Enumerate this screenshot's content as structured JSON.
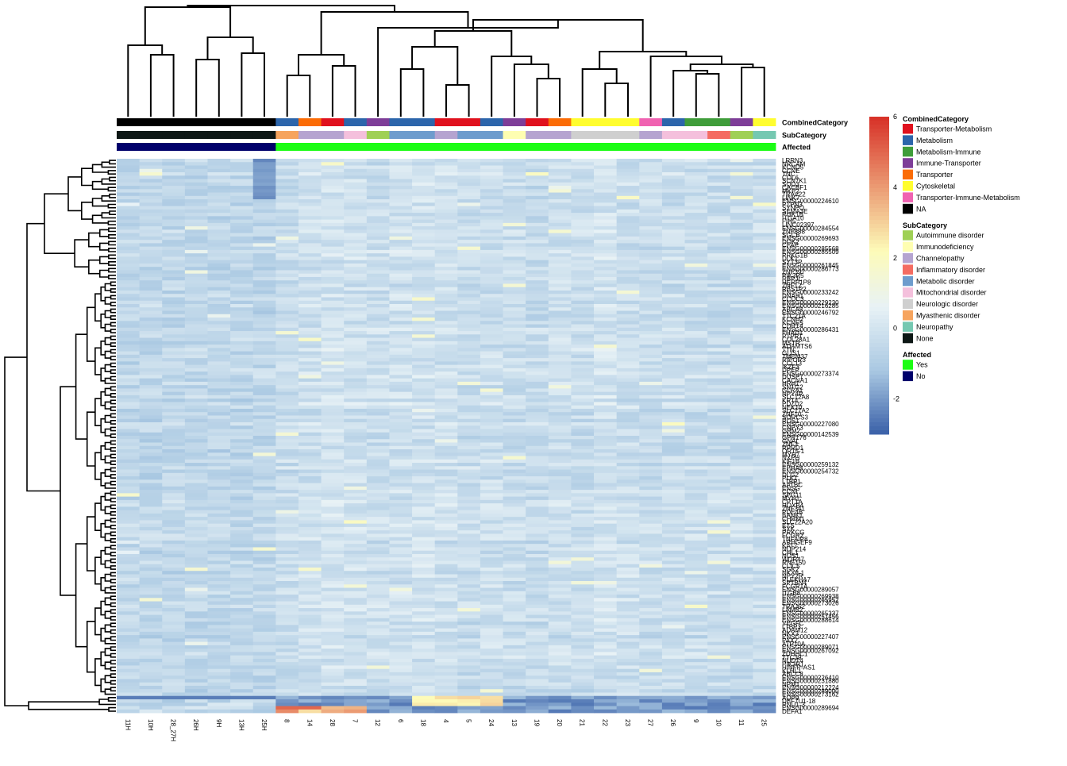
{
  "chart_data": {
    "type": "heatmap",
    "title": "",
    "colors": {
      "scale_low": "#3a60a8",
      "scale_mid_low": "#a9c8e2",
      "scale_mid": "#e8f2f6",
      "scale_mid_high": "#fdfbb8",
      "scale_high": "#d73027"
    },
    "color_scale": {
      "min": -3,
      "max": 6,
      "ticks": [
        {
          "value": -2,
          "label": "-2"
        },
        {
          "value": 0,
          "label": "0"
        },
        {
          "value": 2,
          "label": "2"
        },
        {
          "value": 4,
          "label": "4"
        },
        {
          "value": 6,
          "label": "6"
        }
      ]
    },
    "columns": [
      "11H",
      "10H",
      "28_27H",
      "26H",
      "9H",
      "13H",
      "25H",
      "8",
      "14",
      "28",
      "7",
      "12",
      "6",
      "18",
      "4",
      "5",
      "24",
      "13",
      "19",
      "20",
      "21",
      "22",
      "23",
      "27",
      "26",
      "9",
      "10",
      "11",
      "25"
    ],
    "annotation_labels": [
      "CombinedCategory",
      "SubCategory",
      "Affected"
    ],
    "annotations": {
      "CombinedCategory": [
        "NA",
        "NA",
        "NA",
        "NA",
        "NA",
        "NA",
        "NA",
        "Metabolism",
        "Transporter",
        "Transporter-Metabolism",
        "Metabolism",
        "Immune-Transporter",
        "Metabolism",
        "Metabolism",
        "Transporter-Metabolism",
        "Transporter-Metabolism",
        "Metabolism",
        "Immune-Transporter",
        "Transporter-Metabolism",
        "Transporter",
        "Cytoskeletal",
        "Cytoskeletal",
        "Cytoskeletal",
        "Transporter-Immune-Metabolism",
        "Metabolism",
        "Metabolism-Immune",
        "Metabolism-Immune",
        "Immune-Transporter",
        "Cytoskeletal"
      ],
      "SubCategory": [
        "None",
        "None",
        "None",
        "None",
        "None",
        "None",
        "None",
        "Myasthenic disorder",
        "Channelopathy",
        "Channelopathy",
        "Mitochondrial disorder",
        "Autoimmune disorder",
        "Metabolic disorder",
        "Metabolic disorder",
        "Channelopathy",
        "Metabolic disorder",
        "Metabolic disorder",
        "Immunodeficiency",
        "Channelopathy",
        "Channelopathy",
        "Neurologic disorder",
        "Neurologic disorder",
        "Neurologic disorder",
        "Channelopathy",
        "Mitochondrial disorder",
        "Mitochondrial disorder",
        "Inflammatory disorder",
        "Autoimmune disorder",
        "Neuropathy"
      ],
      "Affected": [
        "No",
        "No",
        "No",
        "No",
        "No",
        "No",
        "No",
        "Yes",
        "Yes",
        "Yes",
        "Yes",
        "Yes",
        "Yes",
        "Yes",
        "Yes",
        "Yes",
        "Yes",
        "Yes",
        "Yes",
        "Yes",
        "Yes",
        "Yes",
        "Yes",
        "Yes",
        "Yes",
        "Yes",
        "Yes",
        "Yes",
        "Yes"
      ]
    },
    "legends": [
      {
        "title": "CombinedCategory",
        "items": [
          {
            "label": "Transporter-Metabolism",
            "color": "#e0111e"
          },
          {
            "label": "Metabolism",
            "color": "#2c65ab"
          },
          {
            "label": "Metabolism-Immune",
            "color": "#3f9d3a"
          },
          {
            "label": "Immune-Transporter",
            "color": "#7e3d98"
          },
          {
            "label": "Transporter",
            "color": "#fb6c06"
          },
          {
            "label": "Cytoskeletal",
            "color": "#fffd2f"
          },
          {
            "label": "Transporter-Immune-Metabolism",
            "color": "#f062b1"
          },
          {
            "label": "NA",
            "color": "#000000"
          }
        ]
      },
      {
        "title": "SubCategory",
        "items": [
          {
            "label": "Autoimmune disorder",
            "color": "#9fd055"
          },
          {
            "label": "Immunodeficiency",
            "color": "#fefeb1"
          },
          {
            "label": "Channelopathy",
            "color": "#b5a4d0"
          },
          {
            "label": "Inflammatory disorder",
            "color": "#f46c62"
          },
          {
            "label": "Metabolic disorder",
            "color": "#6e9ccd"
          },
          {
            "label": "Mitochondrial disorder",
            "color": "#f4c0dc"
          },
          {
            "label": "Neurologic disorder",
            "color": "#cfcfcf"
          },
          {
            "label": "Myasthenic disorder",
            "color": "#f6a45e"
          },
          {
            "label": "Neuropathy",
            "color": "#75c8b1"
          },
          {
            "label": "None",
            "color": "#0d1715"
          }
        ]
      },
      {
        "title": "Affected",
        "items": [
          {
            "label": "Yes",
            "color": "#1bfd14"
          },
          {
            "label": "No",
            "color": "#00006b"
          }
        ]
      }
    ],
    "row_labels": [
      "LRRN3",
      "NRCAM",
      "KCND5",
      "CCNE",
      "TNC",
      "COL6",
      "SCN7K1",
      "SOD3",
      "CACBF1",
      "MKP2",
      "TRAV22",
      "LINK7",
      "ENSG00000224610",
      "PTPN3",
      "SYNPO",
      "SEMA3E",
      "PI3K1B",
      "ITGA10",
      "FIH5",
      "LINC02397",
      "ENSG00000284554",
      "ZNF888",
      "SGCB",
      "ENSG00000269693",
      "DOK2",
      "CFAP",
      "ENSG00000285568",
      "ENSG00000285509",
      "PRKG1B",
      "DLK1",
      "SYT3P",
      "ENSG00000261845",
      "ENSG00000286773",
      "ZNF397",
      "PIK3R5",
      "RBPJL",
      "HERP1P8",
      "ZNF12",
      "RBS1P2",
      "ENSG00000233242",
      "DNAH1",
      "CCDC3",
      "ENSG00000229230",
      "ENSG00000216285",
      "ABCA8",
      "ENSG00000246792",
      "TTC21A",
      "KCNH2",
      "KCNE5",
      "CDRT4",
      "ENSG00000286431",
      "FHAD1",
      "PTPRT",
      "COL28A1",
      "MSTR",
      "ADAMTS6",
      "TTN",
      "GLIS1",
      "TMEM37",
      "RIPOR3",
      "CCL13",
      "IKZF3",
      "DPEP",
      "ENSG00000273374",
      "DUSP7",
      "CACNA1",
      "HRH1",
      "SNTG2",
      "GLRA1",
      "NPY4R",
      "SLC12A8",
      "KRT4",
      "PDZD2",
      "NEK10",
      "SLC17A2",
      "ZNF10",
      "SORCS3",
      "ROS1",
      "ENSG00000227080",
      "CNPY3",
      "GRM2",
      "ENSG00000142539",
      "GPR176",
      "GNAL",
      "ZNF3",
      "RPRD1",
      "OR15-1",
      "MYH7",
      "NXPH",
      "KIF1B",
      "ENSG00000259132",
      "EPHA8",
      "ENSG00000254732",
      "DLG2",
      "PLK1",
      "LTBP1",
      "AATBC",
      "ENSG",
      "CCNI",
      "SPG11",
      "MYH1",
      "CPT1A",
      "HOXB4",
      "ZNF341",
      "PDE4B",
      "BANK1",
      "CHRM1",
      "SLC22A20",
      "ETS",
      "SYK",
      "PRKCG",
      "FCGR2",
      "TNFAIP8",
      "ARHGEF9",
      "KAT7",
      "NUP214",
      "CHL1",
      "NOS1",
      "WDR47",
      "RNF150",
      "CLIC5",
      "SGK2",
      "NKX6-1",
      "NPY2R",
      "PLEKHA7",
      "SPTBN4",
      "FCGR1A",
      "ENSG00000289057",
      "ITGB8",
      "ENSG00000269938",
      "ENSG00000265952",
      "ENSG00000273026",
      "TRAJ62",
      "LAMB2",
      "ENSG00000265337",
      "ENSG00000251456",
      "ENSG00000288614",
      "VEGFC",
      "LTBP3",
      "ADAM12",
      "NKX3",
      "ENSG00000227407",
      "PAX2",
      "ATP10A",
      "ENSG00000289071",
      "ENSG00000267092",
      "ZDHHC1",
      "TTC39",
      "NUDT4",
      "PIK3R1",
      "HINFP-AS1",
      "KLHL1",
      "ABCC8",
      "ENSG00000226410",
      "ENSG00000231880",
      "NPM1",
      "ENSG00000212224",
      "ENSG00000289000",
      "ENSG00000273162",
      "AQP9",
      "DEF7U1-18",
      "RNU1-3",
      "ENSG00000289694",
      "DEFA1"
    ],
    "visible_row_labels": [
      "LRRN3",
      "NRCAM",
      "KCND5",
      "CCNE",
      "TNC",
      "COL6",
      "SCN7K1",
      "SOD3",
      "CACBF1",
      "MKP2",
      "TRAV22",
      "LINK7",
      "ENSG00000224610",
      "PTPN3",
      "SYNPO",
      "SEMA3E",
      "PI3K1B",
      "ITGA10",
      "FIH5",
      "LINC02397",
      "ENSG00000284554",
      "ZNF888",
      "SGCB",
      "ENSG00000269693",
      "DOK2",
      "CFAP",
      "ENSG00000285568",
      "ENSG00000285509",
      "PRKG1B",
      "DLK1",
      "SYT3P",
      "ENSG00000261845",
      "ENSG00000286773",
      "ZNF397",
      "PIK3R5",
      "RBPJL",
      "HERP1P8",
      "ZNF12",
      "RBS1P2",
      "ENSG00000233242",
      "DNAH1",
      "CCDC3",
      "ENSG00000229230",
      "ENSG00000216285",
      "ABCA8",
      "ENSG00000246792",
      "TTC21A",
      "KCNH2",
      "KCNE5",
      "CDRT4",
      "ENSG00000286431",
      "FHAD1",
      "PTPRT",
      "COL28A1",
      "MSTR",
      "ADAMTS6",
      "TTN",
      "GLIS1",
      "TMEM37",
      "RIPOR3",
      "CCL13",
      "IKZF3",
      "DPEP",
      "ENSG00000273374",
      "DUSP7",
      "CACNA1",
      "HRH1",
      "SNTG2",
      "GLRA1",
      "NPY4R",
      "SLC12A8",
      "KRT4",
      "PDZD2",
      "NEK10",
      "SLC17A2",
      "ZNF10",
      "SORCS3",
      "ROS1",
      "ENSG00000227080",
      "CNPY3",
      "GRM2",
      "ENSG00000142539",
      "GPR176",
      "GNAL",
      "ZNF3",
      "RPRD1",
      "OR15-1",
      "MYH7",
      "NXPH",
      "KIF1B",
      "ENSG00000259132",
      "EPHA8",
      "ENSG00000254732",
      "DLG2",
      "PLK1",
      "LTBP1",
      "AATBC",
      "ENSG",
      "CCNI",
      "SPG11",
      "MYH1",
      "CPT1A",
      "HOXB4",
      "ZNF341",
      "PDE4B",
      "BANK1",
      "CHRM1",
      "SLC22A20",
      "ETS",
      "SYK",
      "PRKCG",
      "FCGR2",
      "TNFAIP8",
      "ARHGEF9",
      "KAT7",
      "NUP214",
      "CHL1",
      "NOS1",
      "WDR47",
      "RNF150",
      "CLIC5",
      "SGK2",
      "NKX6-1",
      "NPY2R",
      "PLEKHA7",
      "SPTBN4",
      "FCGR1A",
      "ENSG00000289057",
      "ITGB8",
      "ENSG00000269938",
      "ENSG00000265952",
      "ENSG00000273026",
      "TRAJ62",
      "LAMB2",
      "ENSG00000265337",
      "ENSG00000251456",
      "ENSG00000288614",
      "VEGFC",
      "LTBP3",
      "ADAM12",
      "NKX3",
      "ENSG00000227407",
      "PAX2",
      "ATP10A",
      "ENSG00000289071",
      "ENSG00000267092",
      "ZDHHC1",
      "TTC39",
      "NUDT4",
      "PIK3R1",
      "HINFP-AS1",
      "KLHL1",
      "ABCC8",
      "ENSG00000226410",
      "ENSG00000231880",
      "NPM1",
      "ENSG00000212224",
      "ENSG00000289000",
      "ENSG00000273162",
      "AQP9",
      "DEF7U1-18",
      "RNU1-3",
      "ENSG00000289694",
      "DEFA1"
    ]
  }
}
